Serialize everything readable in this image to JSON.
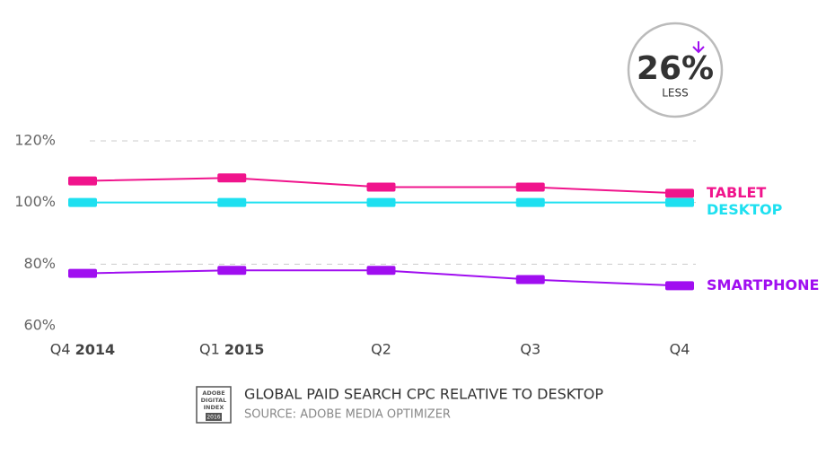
{
  "chart_data": {
    "type": "line",
    "categories": [
      "Q4 2014",
      "Q1 2015",
      "Q2",
      "Q3",
      "Q4"
    ],
    "series": [
      {
        "name": "TABLET",
        "color": "#f0148c",
        "values": [
          107,
          108,
          105,
          105,
          103
        ]
      },
      {
        "name": "DESKTOP",
        "color": "#1ee0f0",
        "values": [
          100,
          100,
          100,
          100,
          100
        ]
      },
      {
        "name": "SMARTPHONE",
        "color": "#a00ef0",
        "values": [
          77,
          78,
          78,
          75,
          73
        ]
      }
    ],
    "ylim": [
      60,
      120
    ],
    "yticks": [
      {
        "value": 60,
        "label": "60%"
      },
      {
        "value": 80,
        "label": "80%"
      },
      {
        "value": 100,
        "label": "100%"
      },
      {
        "value": 120,
        "label": "120%"
      }
    ],
    "grid": true,
    "badge": {
      "value": "26%",
      "label": "LESS"
    },
    "logo": [
      "ADOBE",
      "DIGITAL",
      "INDEX",
      "2016"
    ],
    "title": "GLOBAL PAID SEARCH CPC RELATIVE TO DESKTOP",
    "source": "SOURCE: ADOBE MEDIA OPTIMIZER"
  }
}
